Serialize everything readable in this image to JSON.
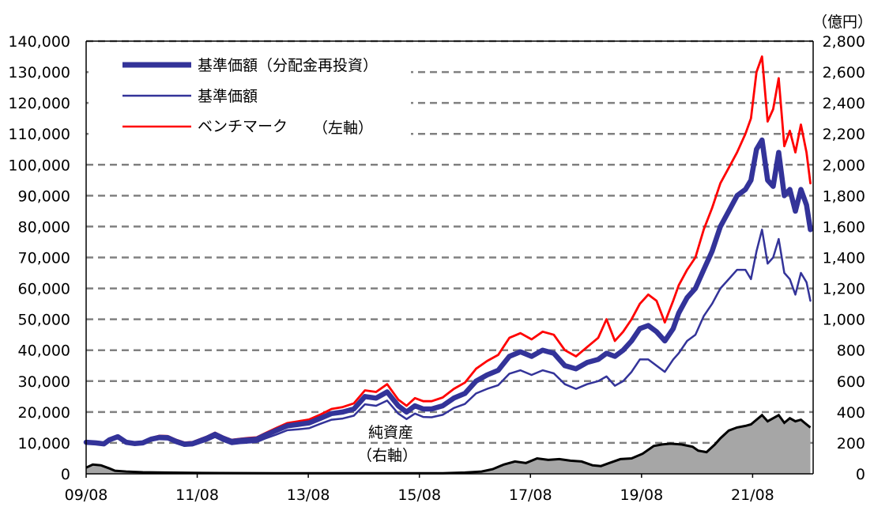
{
  "chart_data": {
    "type": "line",
    "unit_label_right": "（億円）",
    "xlim": [
      2009.58,
      2022.67
    ],
    "y_left": {
      "lim": [
        0,
        140000
      ],
      "ticks": [
        "0",
        "10,000",
        "20,000",
        "30,000",
        "40,000",
        "50,000",
        "60,000",
        "70,000",
        "80,000",
        "90,000",
        "100,000",
        "110,000",
        "120,000",
        "130,000",
        "140,000"
      ]
    },
    "y_right": {
      "lim": [
        0,
        2800
      ],
      "ticks": [
        "0",
        "200",
        "400",
        "600",
        "800",
        "1,000",
        "1,200",
        "1,400",
        "1,600",
        "1,800",
        "2,000",
        "2,200",
        "2,400",
        "2,600",
        "2,800"
      ]
    },
    "x_ticks": [
      {
        "label": "09/08",
        "x": 2009.58
      },
      {
        "label": "11/08",
        "x": 2011.58
      },
      {
        "label": "13/08",
        "x": 2013.58
      },
      {
        "label": "15/08",
        "x": 2015.58
      },
      {
        "label": "17/08",
        "x": 2017.58
      },
      {
        "label": "19/08",
        "x": 2019.58
      },
      {
        "label": "21/08",
        "x": 2021.58
      }
    ],
    "grid": "horizontal dashed",
    "legend_left_axis_label": "（左軸）",
    "annotation_net_assets": [
      "純資産",
      "（右軸）"
    ],
    "series": [
      {
        "name": "基準価額（分配金再投資）",
        "axis": "left",
        "color": "#333399",
        "x": [
          2009.58,
          2009.75,
          2009.9,
          2010.0,
          2010.15,
          2010.3,
          2010.45,
          2010.6,
          2010.75,
          2010.9,
          2011.05,
          2011.2,
          2011.35,
          2011.5,
          2011.6,
          2011.75,
          2011.9,
          2012.05,
          2012.2,
          2012.35,
          2012.5,
          2012.65,
          2012.8,
          2013.0,
          2013.2,
          2013.4,
          2013.6,
          2013.8,
          2014.0,
          2014.2,
          2014.4,
          2014.6,
          2014.8,
          2015.0,
          2015.2,
          2015.35,
          2015.5,
          2015.65,
          2015.8,
          2016.0,
          2016.2,
          2016.4,
          2016.6,
          2016.8,
          2017.0,
          2017.2,
          2017.4,
          2017.6,
          2017.8,
          2018.0,
          2018.2,
          2018.4,
          2018.6,
          2018.8,
          2018.95,
          2019.1,
          2019.25,
          2019.4,
          2019.55,
          2019.7,
          2019.85,
          2020.0,
          2020.15,
          2020.25,
          2020.4,
          2020.55,
          2020.7,
          2020.85,
          2021.0,
          2021.15,
          2021.3,
          2021.45,
          2021.55,
          2021.65,
          2021.75,
          2021.85,
          2021.95,
          2022.05,
          2022.15,
          2022.25,
          2022.35,
          2022.45,
          2022.55,
          2022.62
        ],
        "y": [
          10200,
          10000,
          9700,
          11000,
          12000,
          10200,
          9800,
          10000,
          11200,
          11800,
          11700,
          10500,
          9600,
          9800,
          10500,
          11500,
          12800,
          11500,
          10500,
          10800,
          11000,
          11200,
          12500,
          14000,
          15500,
          16000,
          16500,
          18000,
          19500,
          20000,
          21000,
          25000,
          24500,
          26500,
          22000,
          20000,
          22000,
          21000,
          21000,
          22000,
          24500,
          26000,
          30000,
          32000,
          33500,
          38000,
          39500,
          38000,
          40000,
          39000,
          35000,
          34000,
          36000,
          37000,
          39000,
          38000,
          40000,
          43000,
          47000,
          48000,
          46000,
          43000,
          47000,
          52000,
          57000,
          60000,
          66000,
          72000,
          80000,
          85000,
          90000,
          92000,
          95000,
          105000,
          108000,
          95000,
          93000,
          104000,
          90000,
          92000,
          85000,
          92000,
          87000,
          79000
        ]
      },
      {
        "name": "基準価額",
        "axis": "left",
        "color": "#333399",
        "x": [
          2009.58,
          2009.75,
          2009.9,
          2010.0,
          2010.15,
          2010.3,
          2010.45,
          2010.6,
          2010.75,
          2010.9,
          2011.05,
          2011.2,
          2011.35,
          2011.5,
          2011.6,
          2011.75,
          2011.9,
          2012.05,
          2012.2,
          2012.35,
          2012.5,
          2012.65,
          2012.8,
          2013.0,
          2013.2,
          2013.4,
          2013.6,
          2013.8,
          2014.0,
          2014.2,
          2014.4,
          2014.6,
          2014.8,
          2015.0,
          2015.2,
          2015.35,
          2015.5,
          2015.65,
          2015.8,
          2016.0,
          2016.2,
          2016.4,
          2016.6,
          2016.8,
          2017.0,
          2017.2,
          2017.4,
          2017.6,
          2017.8,
          2018.0,
          2018.2,
          2018.4,
          2018.6,
          2018.8,
          2018.95,
          2019.1,
          2019.25,
          2019.4,
          2019.55,
          2019.7,
          2019.85,
          2020.0,
          2020.15,
          2020.25,
          2020.4,
          2020.55,
          2020.7,
          2020.85,
          2021.0,
          2021.15,
          2021.3,
          2021.45,
          2021.55,
          2021.65,
          2021.75,
          2021.85,
          2021.95,
          2022.05,
          2022.15,
          2022.25,
          2022.35,
          2022.45,
          2022.55,
          2022.62
        ],
        "y": [
          10000,
          9800,
          9500,
          10700,
          11600,
          9800,
          9400,
          9600,
          10700,
          11200,
          11100,
          9900,
          9000,
          9200,
          9800,
          10700,
          11900,
          10600,
          9600,
          9900,
          10100,
          10300,
          11400,
          12700,
          14100,
          14400,
          14800,
          16200,
          17500,
          17900,
          18800,
          22500,
          22000,
          23700,
          19500,
          17700,
          19500,
          18400,
          18300,
          19100,
          21300,
          22600,
          26000,
          27500,
          28700,
          32400,
          33500,
          32000,
          33500,
          32500,
          29000,
          27500,
          29000,
          30000,
          31500,
          28500,
          30000,
          33000,
          37000,
          37000,
          35000,
          33000,
          37000,
          39000,
          43000,
          45000,
          51000,
          55000,
          60000,
          63000,
          66000,
          66000,
          63000,
          72000,
          79000,
          68000,
          70000,
          76000,
          65000,
          63000,
          58000,
          65000,
          62000,
          56000
        ]
      },
      {
        "name": "ベンチマーク",
        "axis": "left",
        "color": "#ff0000",
        "x": [
          2009.58,
          2009.75,
          2009.9,
          2010.0,
          2010.15,
          2010.3,
          2010.45,
          2010.6,
          2010.75,
          2010.9,
          2011.05,
          2011.2,
          2011.35,
          2011.5,
          2011.6,
          2011.75,
          2011.9,
          2012.05,
          2012.2,
          2012.35,
          2012.5,
          2012.65,
          2012.8,
          2013.0,
          2013.2,
          2013.4,
          2013.6,
          2013.8,
          2014.0,
          2014.2,
          2014.4,
          2014.6,
          2014.8,
          2015.0,
          2015.2,
          2015.35,
          2015.5,
          2015.65,
          2015.8,
          2016.0,
          2016.2,
          2016.4,
          2016.6,
          2016.8,
          2017.0,
          2017.2,
          2017.4,
          2017.6,
          2017.8,
          2018.0,
          2018.2,
          2018.4,
          2018.6,
          2018.8,
          2018.95,
          2019.1,
          2019.25,
          2019.4,
          2019.55,
          2019.7,
          2019.85,
          2020.0,
          2020.15,
          2020.25,
          2020.4,
          2020.55,
          2020.7,
          2020.85,
          2021.0,
          2021.15,
          2021.3,
          2021.45,
          2021.55,
          2021.65,
          2021.75,
          2021.85,
          2021.95,
          2022.05,
          2022.15,
          2022.25,
          2022.35,
          2022.45,
          2022.55,
          2022.62
        ],
        "y": [
          10500,
          10300,
          10000,
          11300,
          12400,
          10600,
          10200,
          10400,
          11600,
          12300,
          12200,
          11000,
          10100,
          10300,
          11000,
          12000,
          13300,
          12000,
          11000,
          11300,
          11600,
          11800,
          13100,
          14800,
          16400,
          17000,
          17600,
          19200,
          21000,
          21600,
          22800,
          27000,
          26500,
          29000,
          24000,
          22000,
          24500,
          23500,
          23500,
          24700,
          27500,
          29500,
          34000,
          36500,
          38500,
          44000,
          45500,
          43500,
          46000,
          45000,
          40000,
          38000,
          41000,
          44000,
          50000,
          43000,
          46000,
          50000,
          55000,
          58000,
          56000,
          49000,
          56000,
          61000,
          66000,
          70000,
          79000,
          86000,
          94000,
          99000,
          104000,
          110000,
          115000,
          130000,
          135000,
          114000,
          118000,
          128000,
          106000,
          111000,
          104000,
          113000,
          104000,
          94000
        ]
      },
      {
        "name": "純資産",
        "axis": "right",
        "color": "#a6a6a6",
        "x": [
          2009.58,
          2009.7,
          2009.85,
          2010.0,
          2010.1,
          2010.3,
          2010.6,
          2011.0,
          2011.5,
          2012.0,
          2013.0,
          2014.0,
          2015.0,
          2016.0,
          2016.4,
          2016.7,
          2016.9,
          2017.1,
          2017.3,
          2017.5,
          2017.7,
          2017.9,
          2018.1,
          2018.3,
          2018.5,
          2018.7,
          2018.85,
          2019.0,
          2019.2,
          2019.4,
          2019.6,
          2019.8,
          2019.95,
          2020.1,
          2020.3,
          2020.5,
          2020.6,
          2020.75,
          2020.9,
          2021.0,
          2021.15,
          2021.3,
          2021.45,
          2021.55,
          2021.65,
          2021.75,
          2021.85,
          2021.95,
          2022.05,
          2022.15,
          2022.25,
          2022.35,
          2022.45,
          2022.55,
          2022.62
        ],
        "y": [
          40,
          60,
          55,
          35,
          20,
          15,
          10,
          8,
          6,
          5,
          4,
          4,
          4,
          4,
          8,
          15,
          30,
          60,
          80,
          70,
          100,
          90,
          95,
          85,
          80,
          55,
          50,
          70,
          95,
          100,
          130,
          180,
          190,
          195,
          190,
          175,
          150,
          140,
          190,
          230,
          280,
          300,
          310,
          320,
          350,
          380,
          340,
          360,
          380,
          330,
          360,
          340,
          350,
          320,
          300
        ]
      }
    ]
  }
}
